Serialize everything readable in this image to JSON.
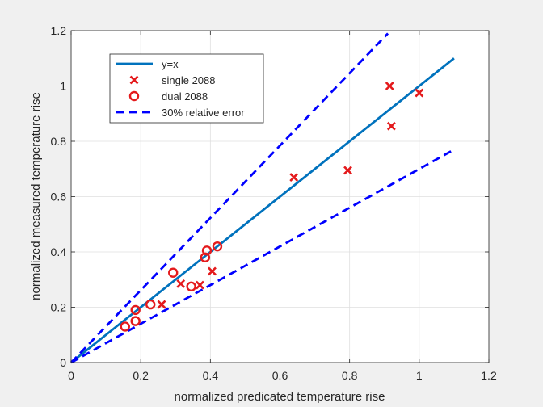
{
  "chart_data": {
    "type": "scatter",
    "title": "",
    "xlabel": "normalized predicated temperature rise",
    "ylabel": "normalized measured temperature rise",
    "xlim": [
      0,
      1.2
    ],
    "ylim": [
      0,
      1.2
    ],
    "xticks": [
      0,
      0.2,
      0.4,
      0.6,
      0.8,
      1,
      1.2
    ],
    "yticks": [
      0,
      0.2,
      0.4,
      0.6,
      0.8,
      1,
      1.2
    ],
    "xtick_labels": [
      "0",
      "0.2",
      "0.4",
      "0.6",
      "0.8",
      "1",
      "1.2"
    ],
    "ytick_labels": [
      "0",
      "0.2",
      "0.4",
      "0.6",
      "0.8",
      "1",
      "1.2"
    ],
    "grid": true,
    "legend_position": "top-left",
    "series": [
      {
        "name": "y=x",
        "kind": "line",
        "style": "solid",
        "color": "#0072bd",
        "x": [
          0,
          1.1
        ],
        "y": [
          0,
          1.1
        ]
      },
      {
        "name": "single 2088",
        "kind": "marker",
        "marker": "x",
        "color": "#e41a1c",
        "x": [
          0.26,
          0.315,
          0.37,
          0.405,
          0.64,
          0.795,
          0.915,
          0.92,
          1.0
        ],
        "y": [
          0.21,
          0.285,
          0.28,
          0.33,
          0.67,
          0.695,
          1.0,
          0.855,
          0.975
        ]
      },
      {
        "name": "dual 2088",
        "kind": "marker",
        "marker": "o",
        "color": "#e41a1c",
        "x": [
          0.155,
          0.185,
          0.185,
          0.228,
          0.293,
          0.345,
          0.385,
          0.39,
          0.42
        ],
        "y": [
          0.13,
          0.15,
          0.19,
          0.21,
          0.325,
          0.275,
          0.38,
          0.405,
          0.42
        ]
      },
      {
        "name": "30% relative error",
        "kind": "line",
        "style": "dashed",
        "color": "#0000ff",
        "segments": [
          {
            "x": [
              0,
              0.91
            ],
            "y": [
              0,
              1.19
            ]
          },
          {
            "x": [
              0,
              1.1
            ],
            "y": [
              0,
              0.77
            ]
          }
        ]
      }
    ]
  }
}
